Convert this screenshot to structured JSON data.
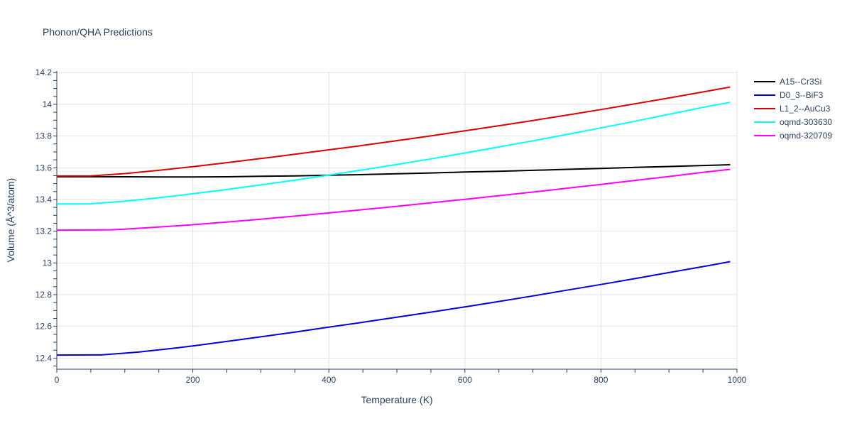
{
  "chart_data": {
    "type": "line",
    "title": "Phonon/QHA Predictions",
    "xlabel": "Temperature (K)",
    "ylabel": "Volume (Å^3/atom)",
    "xlim": [
      0,
      1000
    ],
    "ylim": [
      12.33,
      14.21
    ],
    "xticks": [
      0,
      200,
      400,
      600,
      800,
      1000
    ],
    "xtick_labels": [
      "0",
      "200",
      "400",
      "600",
      "800",
      "1000"
    ],
    "yticks": [
      12.4,
      12.6,
      12.8,
      13,
      13.2,
      13.4,
      13.6,
      13.8,
      14,
      14.2
    ],
    "ytick_labels": [
      "12.4",
      "12.6",
      "12.8",
      "13",
      "13.2",
      "13.4",
      "13.6",
      "13.8",
      "14",
      "14.2"
    ],
    "grid": true,
    "legend_position": "right",
    "series": [
      {
        "name": "A15--Cr3Si",
        "color": "#000000",
        "x": [
          0,
          50,
          100,
          150,
          200,
          250,
          300,
          350,
          400,
          450,
          500,
          550,
          600,
          650,
          700,
          750,
          800,
          850,
          900,
          950,
          990
        ],
        "y": [
          13.543,
          13.543,
          13.543,
          13.542,
          13.542,
          13.543,
          13.546,
          13.549,
          13.553,
          13.557,
          13.562,
          13.567,
          13.573,
          13.578,
          13.584,
          13.59,
          13.596,
          13.602,
          13.608,
          13.614,
          13.619
        ]
      },
      {
        "name": "D0_3--BiF3",
        "color": "#0000dd",
        "x": [
          0,
          50,
          65,
          100,
          120,
          150,
          180,
          200,
          250,
          300,
          350,
          400,
          450,
          500,
          550,
          600,
          650,
          700,
          750,
          800,
          850,
          900,
          950,
          990
        ],
        "y": [
          12.419,
          12.42,
          12.42,
          12.431,
          12.438,
          12.452,
          12.466,
          12.477,
          12.505,
          12.534,
          12.564,
          12.595,
          12.626,
          12.658,
          12.69,
          12.723,
          12.757,
          12.792,
          12.828,
          12.864,
          12.901,
          12.939,
          12.977,
          13.008
        ]
      },
      {
        "name": "L1_2--AuCu3",
        "color": "#dd0000",
        "x": [
          0,
          50,
          100,
          150,
          200,
          250,
          300,
          350,
          400,
          450,
          500,
          550,
          600,
          650,
          700,
          750,
          800,
          850,
          900,
          950,
          990
        ],
        "y": [
          13.548,
          13.549,
          13.563,
          13.584,
          13.607,
          13.632,
          13.658,
          13.685,
          13.713,
          13.741,
          13.771,
          13.801,
          13.833,
          13.865,
          13.898,
          13.932,
          13.967,
          14.003,
          14.04,
          14.078,
          14.109
        ]
      },
      {
        "name": "oqmd-303630",
        "color": "#00ffff",
        "x": [
          0,
          50,
          100,
          150,
          200,
          250,
          300,
          350,
          400,
          450,
          500,
          550,
          600,
          650,
          700,
          750,
          800,
          850,
          900,
          950,
          990
        ],
        "y": [
          13.372,
          13.373,
          13.389,
          13.411,
          13.436,
          13.463,
          13.492,
          13.522,
          13.554,
          13.587,
          13.621,
          13.656,
          13.693,
          13.731,
          13.77,
          13.81,
          13.851,
          13.893,
          13.937,
          13.981,
          14.012
        ]
      },
      {
        "name": "oqmd-320709",
        "color": "#ff00ff",
        "x": [
          0,
          50,
          80,
          100,
          150,
          200,
          250,
          300,
          350,
          400,
          450,
          500,
          550,
          600,
          650,
          700,
          750,
          800,
          850,
          900,
          950,
          990
        ],
        "y": [
          13.207,
          13.208,
          13.209,
          13.213,
          13.226,
          13.241,
          13.258,
          13.276,
          13.295,
          13.315,
          13.336,
          13.357,
          13.379,
          13.401,
          13.424,
          13.447,
          13.471,
          13.495,
          13.52,
          13.545,
          13.571,
          13.59
        ]
      }
    ]
  }
}
